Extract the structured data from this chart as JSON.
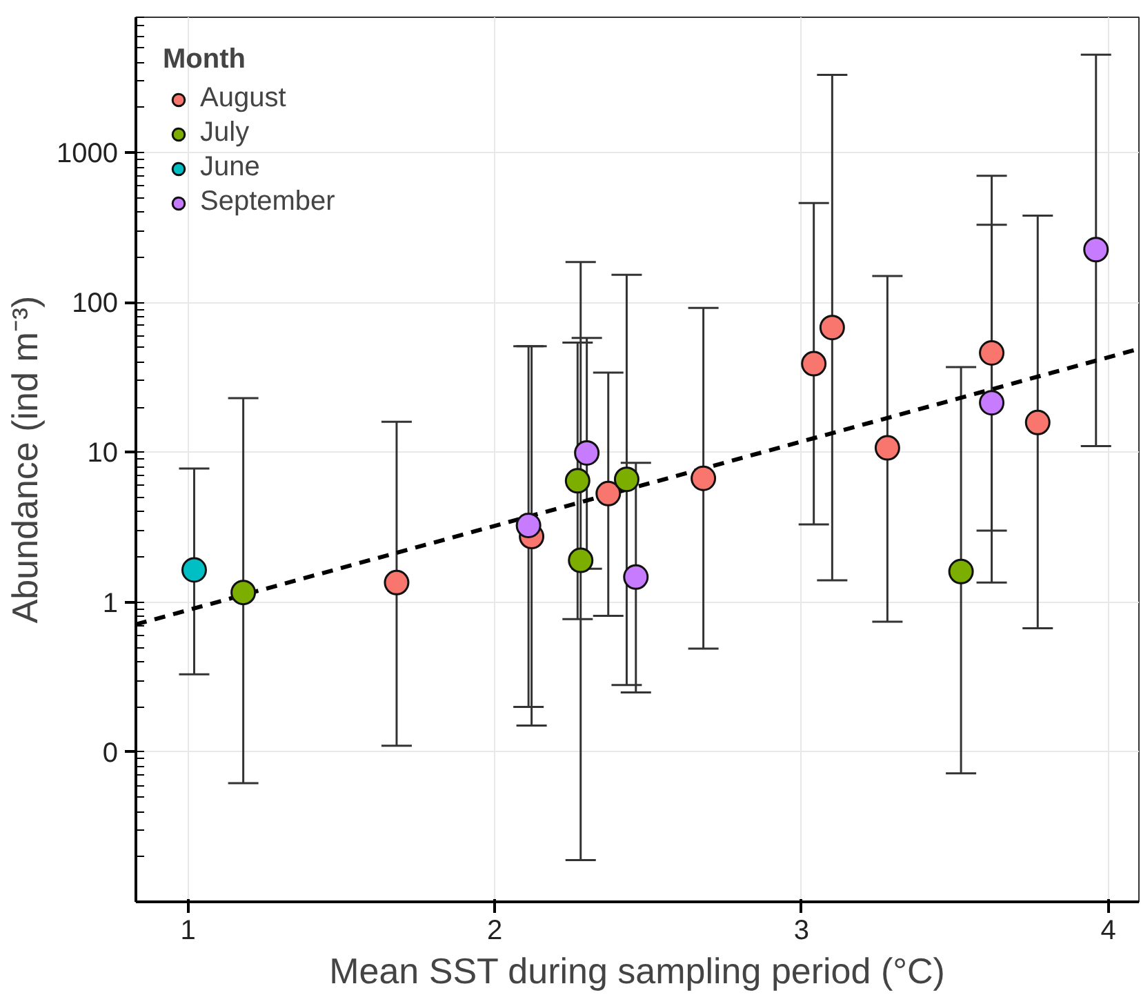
{
  "chart_data": {
    "type": "scatter",
    "xlabel": "Mean SST during sampling period (°C)",
    "ylabel": "Abundance (ind m⁻³)",
    "legend_title": "Month",
    "xlim": [
      0.83,
      4.1
    ],
    "xticks": [
      1,
      2,
      3,
      4
    ],
    "ylim": [
      0.01,
      8000
    ],
    "yticks": [
      {
        "value": 0.1,
        "label": "0"
      },
      1,
      10,
      100,
      1000
    ],
    "log": "y",
    "grid": true,
    "legend": "top left",
    "marker": "circle",
    "series": [
      {
        "name": "August",
        "color": "#f8766d",
        "x": [
          1.68,
          2.12,
          2.37,
          2.68,
          3.04,
          3.1,
          3.28,
          3.62,
          3.77
        ],
        "values": [
          1.35,
          2.74,
          5.3,
          6.7,
          39,
          68,
          10.7,
          46,
          15.8
        ],
        "errors": [
          [
            0.11,
            16
          ],
          [
            0.15,
            51
          ],
          [
            0.81,
            34
          ],
          [
            0.49,
            92
          ],
          [
            3.3,
            460
          ],
          [
            1.4,
            3300
          ],
          [
            0.74,
            150
          ],
          [
            1.35,
            700
          ],
          [
            0.67,
            380
          ]
        ]
      },
      {
        "name": "July",
        "color": "#7cae00",
        "x": [
          1.18,
          2.27,
          2.28,
          2.43,
          3.52
        ],
        "values": [
          1.16,
          6.45,
          1.9,
          6.6,
          1.6
        ],
        "errors": [
          [
            0.062,
            23
          ],
          [
            0.77,
            54
          ],
          [
            0.019,
            186
          ],
          [
            0.28,
            153
          ],
          [
            0.072,
            37
          ]
        ]
      },
      {
        "name": "June",
        "color": "#00bfc4",
        "x": [
          1.02
        ],
        "values": [
          1.64
        ],
        "errors": [
          [
            0.33,
            7.8
          ]
        ]
      },
      {
        "name": "September",
        "color": "#c77cff",
        "x": [
          2.11,
          2.3,
          2.46,
          3.62,
          3.96
        ],
        "values": [
          3.25,
          9.9,
          1.47,
          21.4,
          225
        ],
        "errors": [
          [
            0.2,
            51
          ],
          [
            1.67,
            58
          ],
          [
            0.25,
            8.5
          ],
          [
            3.0,
            330
          ],
          [
            11,
            4500
          ]
        ]
      },
      {
        "type": "line",
        "color": "#000000",
        "line_style": "dashed",
        "marker": "none",
        "x": [
          0.83,
          4.1
        ],
        "values": [
          0.71,
          49
        ]
      }
    ]
  }
}
